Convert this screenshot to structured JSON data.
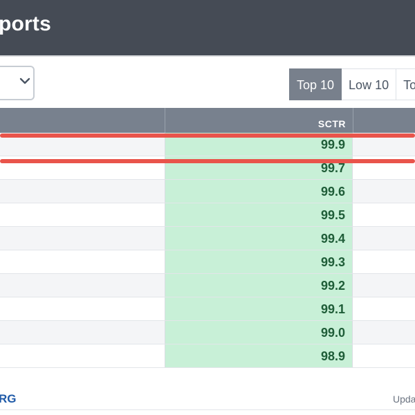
{
  "header": {
    "title": "ports"
  },
  "dropdown": {
    "icon": "chevron-down-icon"
  },
  "range_buttons": [
    {
      "label": "Top 10",
      "active": true
    },
    {
      "label": "Low 10",
      "active": false
    },
    {
      "label": "Top",
      "active": false
    }
  ],
  "table": {
    "column_header": "SCTR",
    "rows": [
      "99.9",
      "99.7",
      "99.6",
      "99.5",
      "99.4",
      "99.3",
      "99.2",
      "99.1",
      "99.0",
      "98.9"
    ]
  },
  "footer": {
    "link": "RG",
    "update": "Upda"
  },
  "colors": {
    "header_bg": "#454b55",
    "table_header_bg": "#78818e",
    "sctr_cell_bg": "#c8f0d7",
    "highlight_red": "#e9544b",
    "active_button_bg": "#78808c"
  }
}
